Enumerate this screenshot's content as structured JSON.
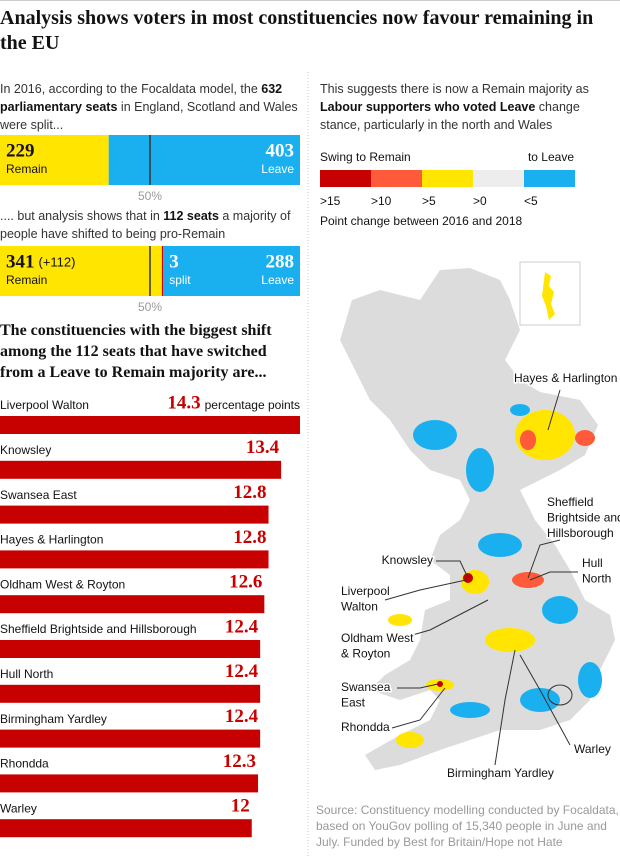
{
  "header": {
    "title": "Analysis shows voters in most constituencies now favour remaining in the EU"
  },
  "split_2016": {
    "text": [
      "In 2016, according to the Focaldata model, the ",
      "632 parliamentary seats",
      " in England, Scotland and Wales were split..."
    ],
    "remain": {
      "value": 229,
      "label": "Remain",
      "color": "#ffe500"
    },
    "leave": {
      "value": 403,
      "label": "Leave",
      "color": "#1ab0ef"
    },
    "midpoint": "50%"
  },
  "split_now": {
    "text": [
      ".... but analysis shows that in ",
      "112 seats",
      " a majority of people have shifted to being pro-Remain"
    ],
    "remain": {
      "value": 341,
      "change": "(+112)",
      "label": "Remain",
      "color": "#ffe500"
    },
    "split": {
      "value": 3,
      "label": "split",
      "color": "#c70000"
    },
    "leave": {
      "value": 288,
      "label": "Leave",
      "color": "#1ab0ef"
    },
    "midpoint": "50%"
  },
  "chart_data": {
    "type": "bar",
    "title": "The constituencies with the biggest shift among the 112 seats that have switched from a Leave to Remain majority are...",
    "annotation": "percentage points",
    "categories": [
      "Liverpool Walton",
      "Knowsley",
      "Swansea East",
      "Hayes & Harlington",
      "Oldham West & Royton",
      "Sheffield Brightside and Hillsborough",
      "Hull North",
      "Birmingham Yardley",
      "Rhondda",
      "Warley"
    ],
    "values": [
      14.3,
      13.4,
      12.8,
      12.8,
      12.6,
      12.4,
      12.4,
      12.4,
      12.3,
      12
    ],
    "color": "#c70000"
  },
  "map": {
    "text": [
      "This suggests there is now a Remain majority as ",
      "Labour supporters who voted Leave",
      " change stance, particularly in the north and Wales"
    ],
    "legend": {
      "left": "Swing to Remain",
      "right": "to Leave",
      "items": [
        {
          "label": ">15",
          "color": "#c70000"
        },
        {
          "label": ">10",
          "color": "#ff5b3a"
        },
        {
          "label": ">5",
          "color": "#ffe500"
        },
        {
          "label": ">0",
          "color": "#ededed"
        },
        {
          "label": "<5",
          "color": "#1ab0ef"
        }
      ],
      "caption": "Point change between 2016 and 2018"
    },
    "labels": [
      {
        "lines": [
          "Hayes & Harlington"
        ]
      },
      {
        "lines": [
          "Sheffield",
          "Brightside and",
          "Hillsborough"
        ]
      },
      {
        "lines": [
          "Knowsley"
        ]
      },
      {
        "lines": [
          "Hull",
          "North"
        ]
      },
      {
        "lines": [
          "Liverpool",
          "Walton"
        ]
      },
      {
        "lines": [
          "Oldham West",
          "& Royton"
        ]
      },
      {
        "lines": [
          "Swansea",
          "East"
        ]
      },
      {
        "lines": [
          "Rhondda"
        ]
      },
      {
        "lines": [
          "Warley"
        ]
      },
      {
        "lines": [
          "Birmingham Yardley"
        ]
      }
    ]
  },
  "source": "Source: Constituency modelling conducted by Focaldata, based on YouGov polling of 15,340 people in June and July. Funded by Best for Britain/Hope not Hate"
}
